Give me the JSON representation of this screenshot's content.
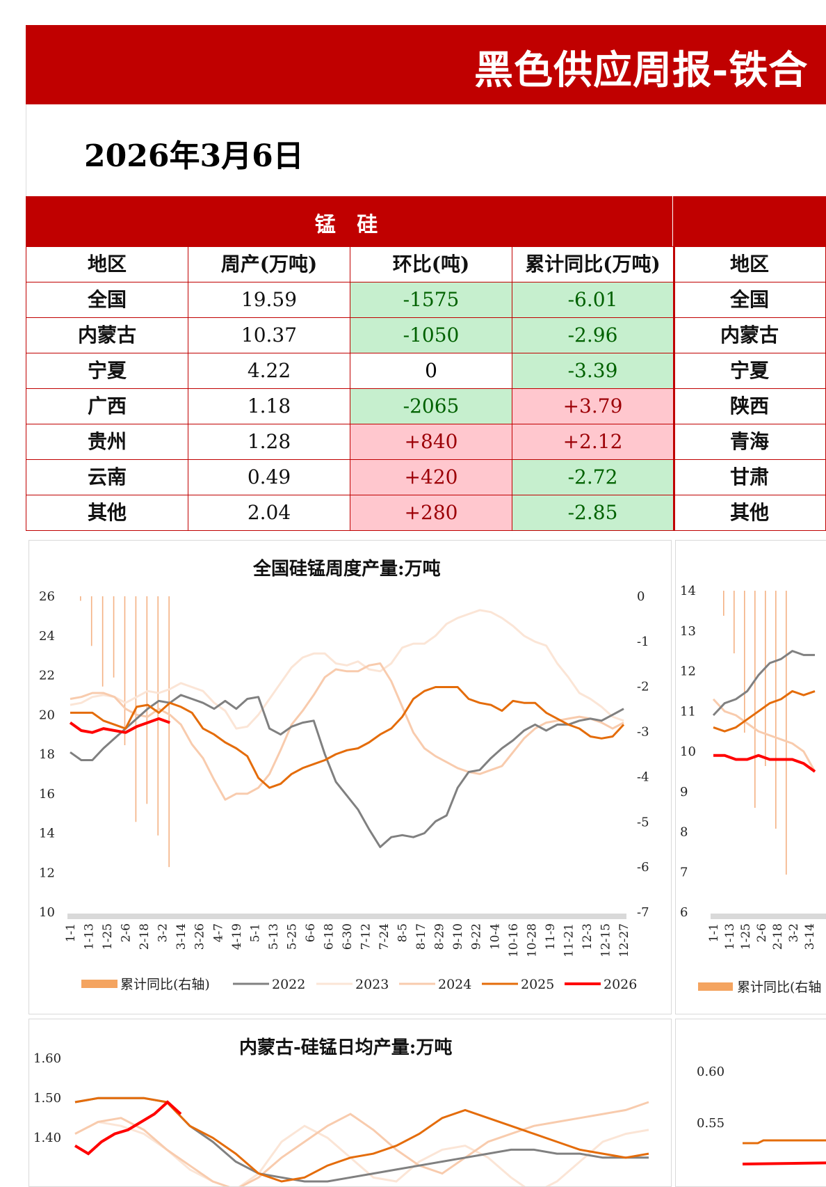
{
  "header": {
    "title": "黑色供应周报-铁合",
    "date": "2026年3月6日"
  },
  "table": {
    "section_title": "锰 硅",
    "columns": [
      "地区",
      "周产(万吨)",
      "环比(吨)",
      "累计同比(万吨)"
    ],
    "rows": [
      {
        "region": "全国",
        "weekly": "19.59",
        "wow": "-1575",
        "yoy": "-6.01"
      },
      {
        "region": "内蒙古",
        "weekly": "10.37",
        "wow": "-1050",
        "yoy": "-2.96"
      },
      {
        "region": "宁夏",
        "weekly": "4.22",
        "wow": "0",
        "yoy": "-3.39"
      },
      {
        "region": "广西",
        "weekly": "1.18",
        "wow": "-2065",
        "yoy": "+3.79"
      },
      {
        "region": "贵州",
        "weekly": "1.28",
        "wow": "+840",
        "yoy": "+2.12"
      },
      {
        "region": "云南",
        "weekly": "0.49",
        "wow": "+420",
        "yoy": "-2.72"
      },
      {
        "region": "其他",
        "weekly": "2.04",
        "wow": "+280",
        "yoy": "-2.85"
      }
    ],
    "side_header": "地区",
    "side_regions": [
      "全国",
      "内蒙古",
      "宁夏",
      "陕西",
      "青海",
      "甘肃",
      "其他"
    ]
  },
  "colors": {
    "brand_red": "#c00000",
    "neg_bg": "#c6efce",
    "neg_text": "#006100",
    "pos_bg": "#ffc7ce",
    "pos_text": "#9c0006"
  },
  "chart_data": [
    {
      "type": "line",
      "title": "全国硅锰周度产量:万吨",
      "ylim": [
        10,
        26
      ],
      "yticks": [
        "26",
        "24",
        "22",
        "20",
        "18",
        "16",
        "14",
        "12",
        "10"
      ],
      "y2lim": [
        -7,
        0
      ],
      "y2ticks": [
        "0",
        "-1",
        "-2",
        "-3",
        "-4",
        "-5",
        "-6",
        "-7"
      ],
      "xticks": [
        "1-1",
        "1-13",
        "1-25",
        "2-6",
        "2-18",
        "3-2",
        "3-14",
        "3-26",
        "4-7",
        "4-19",
        "5-1",
        "5-13",
        "5-25",
        "6-6",
        "6-18",
        "6-30",
        "7-12",
        "7-24",
        "8-5",
        "8-17",
        "8-29",
        "9-10",
        "9-22",
        "10-4",
        "10-16",
        "10-28",
        "11-9",
        "11-21",
        "12-3",
        "12-15",
        "12-27"
      ],
      "legend": [
        "累计同比(右轴)",
        "2022",
        "2023",
        "2024",
        "2025",
        "2026"
      ],
      "bars": {
        "name": "累计同比(右轴)",
        "values": [
          -0.1,
          -1.1,
          -2.0,
          -1.8,
          -3.3,
          -5.0,
          -4.6,
          -5.3,
          -6.0
        ]
      },
      "series": [
        {
          "name": "2022",
          "color": "#808080",
          "values": [
            18.1,
            17.7,
            17.7,
            18.3,
            18.8,
            19.3,
            19.8,
            20.3,
            20.7,
            20.6,
            21.0,
            20.8,
            20.6,
            20.3,
            20.7,
            20.3,
            20.8,
            20.9,
            19.3,
            19.0,
            19.4,
            19.6,
            19.7,
            18.0,
            16.6,
            15.9,
            15.2,
            14.2,
            13.3,
            13.8,
            13.9,
            13.8,
            14.0,
            14.6,
            14.9,
            16.3,
            17.1,
            17.2,
            17.8,
            18.3,
            18.7,
            19.2,
            19.5,
            19.2,
            19.5,
            19.5,
            19.7,
            19.8,
            19.7,
            20.0,
            20.3
          ]
        },
        {
          "name": "2023",
          "color": "#fbe5d6",
          "values": [
            20.5,
            20.6,
            20.9,
            21.0,
            20.9,
            20.6,
            20.9,
            21.2,
            21.1,
            21.3,
            21.6,
            21.4,
            21.2,
            20.6,
            20.2,
            19.3,
            19.4,
            20.0,
            20.8,
            21.6,
            22.4,
            22.9,
            23.1,
            23.1,
            22.6,
            22.5,
            22.7,
            22.3,
            22.2,
            22.6,
            23.4,
            23.6,
            23.6,
            24.0,
            24.6,
            24.9,
            25.1,
            25.3,
            25.2,
            24.9,
            24.5,
            24.0,
            23.7,
            23.5,
            22.6,
            21.9,
            21.1,
            20.8,
            20.4,
            19.9,
            19.7
          ]
        },
        {
          "name": "2024",
          "color": "#f8cbad",
          "values": [
            20.8,
            20.9,
            21.1,
            21.1,
            20.9,
            20.3,
            20.0,
            19.9,
            20.3,
            20.0,
            19.5,
            18.5,
            17.8,
            16.7,
            15.7,
            16.0,
            16.0,
            16.3,
            17.0,
            18.2,
            19.5,
            20.2,
            21.0,
            21.9,
            22.3,
            22.2,
            22.2,
            22.5,
            22.6,
            21.7,
            20.4,
            19.1,
            18.3,
            17.9,
            17.6,
            17.3,
            17.1,
            17.0,
            17.2,
            17.4,
            18.1,
            18.8,
            19.3,
            19.6,
            19.7,
            19.8,
            19.9,
            19.8,
            19.6,
            19.3,
            19.6
          ]
        },
        {
          "name": "2025",
          "color": "#e46c0a",
          "values": [
            20.1,
            20.1,
            20.1,
            19.7,
            19.5,
            19.3,
            20.4,
            20.5,
            20.1,
            20.6,
            20.4,
            20.1,
            19.3,
            19.0,
            18.6,
            18.3,
            17.9,
            16.8,
            16.3,
            16.5,
            17.0,
            17.3,
            17.5,
            17.7,
            18.0,
            18.2,
            18.3,
            18.6,
            19.0,
            19.3,
            19.9,
            20.8,
            21.2,
            21.4,
            21.4,
            21.4,
            20.8,
            20.6,
            20.5,
            20.2,
            20.7,
            20.6,
            20.6,
            20.1,
            19.8,
            19.5,
            19.3,
            18.9,
            18.8,
            18.9,
            19.5
          ]
        },
        {
          "name": "2026",
          "color": "#ff0000",
          "values": [
            19.6,
            19.2,
            19.1,
            19.3,
            19.2,
            19.1,
            19.4,
            19.6,
            19.8,
            19.6
          ]
        }
      ]
    },
    {
      "type": "line",
      "title": "",
      "ylim": [
        6,
        14
      ],
      "yticks": [
        "14",
        "13",
        "12",
        "11",
        "10",
        "9",
        "8",
        "7",
        "6"
      ],
      "xticks": [
        "1-1",
        "1-13",
        "1-25",
        "2-6",
        "2-18",
        "3-2",
        "3-14"
      ],
      "legend": [
        "累计同比(右轴"
      ],
      "series": [
        {
          "name": "2022",
          "color": "#808080",
          "values": [
            10.9,
            11.2,
            11.3,
            11.5,
            11.9,
            12.2,
            12.3,
            12.5,
            12.4,
            12.4
          ]
        },
        {
          "name": "2025",
          "color": "#e46c0a",
          "values": [
            10.6,
            10.5,
            10.6,
            10.8,
            11.0,
            11.2,
            11.3,
            11.5,
            11.4,
            11.5
          ]
        },
        {
          "name": "2024",
          "color": "#f8cbad",
          "values": [
            11.3,
            11.0,
            10.9,
            10.7,
            10.5,
            10.4,
            10.3,
            10.2,
            10.0,
            9.5
          ]
        },
        {
          "name": "2026",
          "color": "#ff0000",
          "values": [
            9.9,
            9.9,
            9.8,
            9.8,
            9.9,
            9.8,
            9.8,
            9.8,
            9.7,
            9.5
          ]
        }
      ]
    },
    {
      "type": "line",
      "title": "内蒙古-硅锰日均产量:万吨",
      "ylim": [
        1.3,
        1.6
      ],
      "yticks": [
        "1.60",
        "1.50",
        "1.40"
      ]
    },
    {
      "type": "line",
      "title": "",
      "ylim": [
        0.5,
        0.62
      ],
      "yticks": [
        "0.60",
        "0.55"
      ]
    }
  ]
}
